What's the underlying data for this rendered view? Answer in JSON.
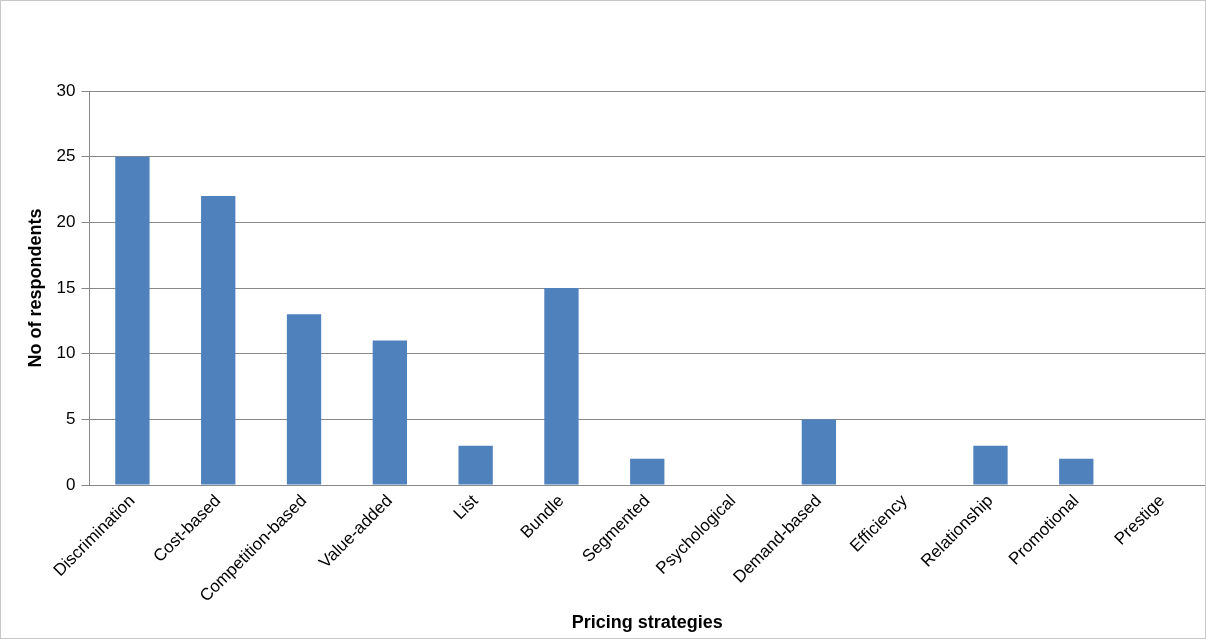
{
  "chart_data": {
    "type": "bar",
    "xlabel": "Pricing strategies",
    "ylabel": "No of respondents",
    "categories": [
      "Discrimination",
      "Cost-based",
      "Competition-based",
      "Value-added",
      "List",
      "Bundle",
      "Segmented",
      "Psychological",
      "Demand-based",
      "Efficiency",
      "Relationship",
      "Promotional",
      "Prestige"
    ],
    "values": [
      25,
      22,
      13,
      11,
      3,
      15,
      2,
      0,
      5,
      0,
      3,
      2,
      0
    ],
    "color": "#4f81bd",
    "ylim": [
      0,
      30
    ],
    "yticks": [
      0,
      5,
      10,
      15,
      20,
      25,
      30
    ],
    "grid": "y"
  }
}
